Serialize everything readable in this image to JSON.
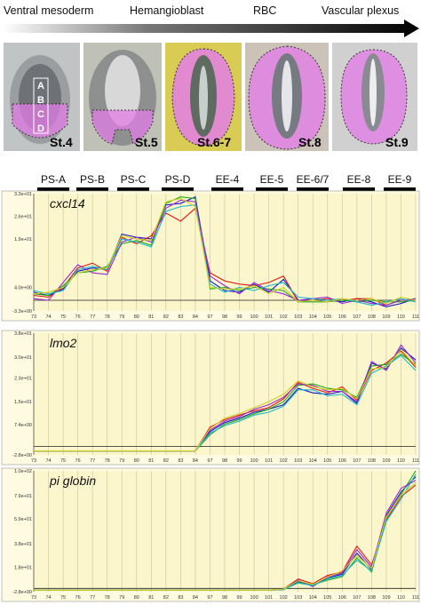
{
  "top_panel": {
    "stages": [
      "Ventral mesoderm",
      "Hemangioblast",
      "RBC",
      "Vascular plexus"
    ],
    "embryos": [
      {
        "label": "St.4",
        "regions": [
          "A",
          "B",
          "C",
          "D"
        ],
        "bg": "#bfc3c3"
      },
      {
        "label": "St.5",
        "bg": "#c2c4b8"
      },
      {
        "label": "St.6-7",
        "bg": "#d8cc58"
      },
      {
        "label": "St.8",
        "bg": "#c8c0b8"
      },
      {
        "label": "St.9",
        "bg": "#cfcfcf"
      }
    ]
  },
  "sample_groups": [
    "PS-A",
    "PS-B",
    "PS-C",
    "PS-D",
    "EE-4",
    "EE-5",
    "EE-6/7",
    "EE-8",
    "EE-9"
  ],
  "colors": {
    "plot_bg": "#fbf6cc",
    "gridline": "#c8c2a0",
    "pink_region": "#e27ee6",
    "series": [
      "#1515c8",
      "#e01818",
      "#1aa81a",
      "#9a2ad0",
      "#18b8c8",
      "#d0d020",
      "#202090",
      "#c02080"
    ]
  },
  "chart_data": [
    {
      "type": "line",
      "gene": "cxcl14",
      "categories": [
        "73",
        "74",
        "75",
        "76",
        "77",
        "78",
        "79",
        "80",
        "81",
        "82",
        "83",
        "84",
        "97",
        "98",
        "99",
        "100",
        "101",
        "102",
        "103",
        "104",
        "105",
        "106",
        "107",
        "108",
        "109",
        "110",
        "111"
      ],
      "ytick_labels": [
        "-3.3e+00",
        "4.0e+00",
        "1.9e+01",
        "2.6e+01",
        "3.3e+01"
      ],
      "ytick_values": [
        -3.3,
        4.0,
        19.0,
        26.0,
        33.0
      ],
      "ylim": [
        -3.3,
        33
      ],
      "series": [
        {
          "values": [
            2.5,
            1.5,
            3.5,
            9.0,
            10.0,
            9.5,
            20.5,
            19.5,
            19.0,
            29.5,
            30.0,
            32.0,
            6.0,
            3.0,
            2.5,
            5.0,
            2.5,
            6.5,
            0.0,
            0.0,
            0.0,
            -0.5,
            0.5,
            -0.5,
            -2.0,
            -1.0,
            0.5
          ]
        },
        {
          "values": [
            1.5,
            1.0,
            4.0,
            10.0,
            11.5,
            9.0,
            19.5,
            17.5,
            20.0,
            27.0,
            24.5,
            28.5,
            8.5,
            6.0,
            5.0,
            4.5,
            5.5,
            7.5,
            -0.5,
            0.0,
            0.5,
            0.0,
            0.5,
            0.5,
            -1.5,
            0.0,
            0.0
          ]
        },
        {
          "values": [
            2.0,
            1.5,
            4.5,
            8.5,
            9.0,
            10.5,
            17.5,
            18.5,
            17.0,
            30.0,
            32.0,
            31.5,
            3.5,
            4.0,
            3.0,
            4.0,
            3.5,
            3.0,
            -0.5,
            -0.5,
            -0.5,
            0.0,
            -0.5,
            0.0,
            -0.5,
            -0.5,
            0.0
          ]
        },
        {
          "values": [
            0.5,
            0.0,
            5.5,
            11.0,
            8.5,
            8.0,
            18.0,
            19.5,
            18.0,
            28.5,
            31.0,
            30.5,
            7.5,
            4.5,
            2.0,
            5.5,
            3.0,
            2.0,
            0.0,
            0.5,
            1.0,
            -1.0,
            0.0,
            -1.0,
            -1.5,
            0.0,
            0.5
          ]
        },
        {
          "values": [
            3.0,
            2.0,
            3.0,
            9.5,
            10.5,
            9.5,
            19.0,
            18.0,
            16.5,
            27.5,
            29.0,
            29.5,
            5.0,
            2.5,
            4.0,
            3.0,
            4.5,
            5.5,
            1.0,
            0.5,
            0.0,
            0.5,
            -0.5,
            -1.5,
            -0.5,
            0.5,
            -0.5
          ]
        },
        {
          "values": [
            2.0,
            2.5,
            4.0,
            8.5,
            9.5,
            10.0,
            20.0,
            19.0,
            18.5,
            30.5,
            31.5,
            29.0,
            4.0,
            3.5,
            3.5,
            4.5,
            2.0,
            4.0,
            -0.5,
            0.0,
            -0.5,
            0.5,
            0.0,
            0.5,
            -1.0,
            1.0,
            0.0
          ]
        }
      ]
    },
    {
      "type": "line",
      "gene": "lmo2",
      "categories": [
        "73",
        "74",
        "75",
        "76",
        "77",
        "78",
        "79",
        "80",
        "81",
        "82",
        "83",
        "84",
        "97",
        "98",
        "99",
        "100",
        "101",
        "102",
        "103",
        "104",
        "105",
        "106",
        "107",
        "108",
        "109",
        "110",
        "111"
      ],
      "ytick_labels": [
        "-2.8e+00",
        "7.4e+00",
        "1.5e+01",
        "2.3e+01",
        "3.0e+01",
        "3.8e+01"
      ],
      "ytick_values": [
        -2.8,
        7.4,
        15.0,
        23.0,
        30.0,
        38.0
      ],
      "ylim": [
        -2.8,
        38
      ],
      "series": [
        {
          "values": [
            -1.5,
            -1.5,
            -1.5,
            -1.5,
            -1.5,
            -1.5,
            -1.5,
            -1.5,
            -1.5,
            -1.5,
            -1.5,
            -1.5,
            5.0,
            8.0,
            9.5,
            11.5,
            12.5,
            14.0,
            19.5,
            18.0,
            17.5,
            18.5,
            14.5,
            28.0,
            26.0,
            33.0,
            29.0
          ]
        },
        {
          "values": [
            -1.5,
            -1.5,
            -1.5,
            -1.5,
            -1.5,
            -1.5,
            -1.5,
            -1.5,
            -1.5,
            -1.5,
            -1.5,
            -1.5,
            6.5,
            9.0,
            10.5,
            12.0,
            13.0,
            16.0,
            21.5,
            19.5,
            18.0,
            20.0,
            15.5,
            25.5,
            28.0,
            32.0,
            26.5
          ]
        },
        {
          "values": [
            -1.5,
            -1.5,
            -1.5,
            -1.5,
            -1.5,
            -1.5,
            -1.5,
            -1.5,
            -1.5,
            -1.5,
            -1.5,
            -1.5,
            4.0,
            7.5,
            9.0,
            11.0,
            12.5,
            15.0,
            20.5,
            21.0,
            19.5,
            19.0,
            16.5,
            27.0,
            27.5,
            31.0,
            27.5
          ]
        },
        {
          "values": [
            -1.5,
            -1.5,
            -1.5,
            -1.5,
            -1.5,
            -1.5,
            -1.5,
            -1.5,
            -1.5,
            -1.5,
            -1.5,
            -1.5,
            5.5,
            8.5,
            10.0,
            12.5,
            14.0,
            16.5,
            21.0,
            20.5,
            18.5,
            18.5,
            15.0,
            28.5,
            25.5,
            34.0,
            28.0
          ]
        },
        {
          "values": [
            -1.5,
            -1.5,
            -1.5,
            -1.5,
            -1.5,
            -1.5,
            -1.5,
            -1.5,
            -1.5,
            -1.5,
            -1.5,
            -1.5,
            4.5,
            7.0,
            8.5,
            10.5,
            11.5,
            13.5,
            19.0,
            19.0,
            17.0,
            17.5,
            14.0,
            24.5,
            27.0,
            30.5,
            25.5
          ]
        },
        {
          "values": [
            -1.5,
            -1.5,
            -1.5,
            -1.5,
            -1.5,
            -1.5,
            -1.5,
            -1.5,
            -1.5,
            -1.5,
            -1.5,
            -1.5,
            6.0,
            9.5,
            11.0,
            13.0,
            15.0,
            17.5,
            22.0,
            20.0,
            19.0,
            19.5,
            16.0,
            26.0,
            26.5,
            32.5,
            27.0
          ]
        }
      ]
    },
    {
      "type": "line",
      "gene": "pi globin",
      "categories": [
        "73",
        "74",
        "75",
        "76",
        "77",
        "78",
        "79",
        "80",
        "81",
        "82",
        "83",
        "84",
        "97",
        "98",
        "99",
        "100",
        "101",
        "102",
        "103",
        "104",
        "105",
        "106",
        "107",
        "108",
        "109",
        "110",
        "111"
      ],
      "ytick_labels": [
        "-2.8e+00",
        "1.8e+01",
        "3.8e+01",
        "5.9e+01",
        "7.9e+01",
        "1.0e+02"
      ],
      "ytick_values": [
        -2.8,
        18.0,
        38.0,
        59.0,
        79.0,
        100.0
      ],
      "ylim": [
        -2.8,
        100
      ],
      "series": [
        {
          "values": [
            -1.5,
            -1.5,
            -1.5,
            -1.5,
            -1.5,
            -1.5,
            -1.5,
            -1.5,
            -1.5,
            -1.5,
            -1.5,
            -1.5,
            -1.5,
            -1.5,
            -1.5,
            -1.5,
            -1.5,
            -1.0,
            6.0,
            2.0,
            9.0,
            12.0,
            30.0,
            16.0,
            62.0,
            82.0,
            95.0
          ]
        },
        {
          "values": [
            -1.5,
            -1.5,
            -1.5,
            -1.5,
            -1.5,
            -1.5,
            -1.5,
            -1.5,
            -1.5,
            -1.5,
            -1.5,
            -1.5,
            -1.5,
            -1.5,
            -1.5,
            -1.5,
            -1.5,
            -0.5,
            8.0,
            4.0,
            11.0,
            14.0,
            36.0,
            20.0,
            58.0,
            78.0,
            88.0
          ]
        },
        {
          "values": [
            -1.5,
            -1.5,
            -1.5,
            -1.5,
            -1.5,
            -1.5,
            -1.5,
            -1.5,
            -1.5,
            -1.5,
            -1.5,
            -1.5,
            -1.5,
            -1.5,
            -1.5,
            -1.5,
            -1.5,
            -1.0,
            5.0,
            3.0,
            7.0,
            10.0,
            26.0,
            14.0,
            60.0,
            80.0,
            100.0
          ]
        },
        {
          "values": [
            -1.5,
            -1.5,
            -1.5,
            -1.5,
            -1.5,
            -1.5,
            -1.5,
            -1.5,
            -1.5,
            -1.5,
            -1.5,
            -1.5,
            -1.5,
            -1.5,
            -1.5,
            -1.5,
            -1.5,
            -0.5,
            7.0,
            1.5,
            10.0,
            13.0,
            33.0,
            18.0,
            64.0,
            85.0,
            92.0
          ]
        },
        {
          "values": [
            -1.5,
            -1.5,
            -1.5,
            -1.5,
            -1.5,
            -1.5,
            -1.5,
            -1.5,
            -1.5,
            -1.5,
            -1.5,
            -1.5,
            -1.5,
            -1.5,
            -1.5,
            -1.5,
            -1.5,
            -1.0,
            4.5,
            2.5,
            8.0,
            11.0,
            24.0,
            15.0,
            57.0,
            76.0,
            97.0
          ]
        },
        {
          "values": [
            -1.5,
            -1.5,
            -1.5,
            -1.5,
            -1.5,
            -1.5,
            -1.5,
            -1.5,
            -1.5,
            -1.5,
            -1.5,
            -1.5,
            -1.5,
            -1.5,
            -1.5,
            -1.5,
            -1.5,
            -0.5,
            6.5,
            3.5,
            9.5,
            15.0,
            28.0,
            17.0,
            61.0,
            79.0,
            90.0
          ]
        }
      ]
    }
  ]
}
